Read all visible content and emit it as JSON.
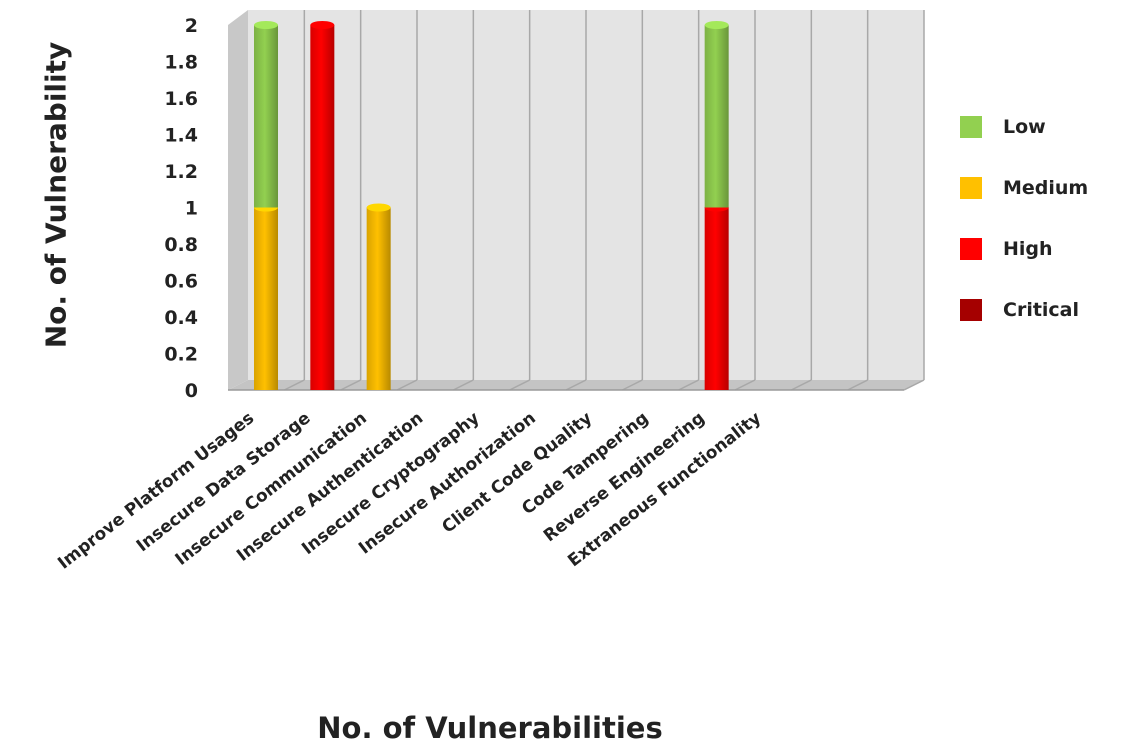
{
  "chart_data": {
    "type": "bar",
    "stacked": true,
    "three_d": true,
    "xlabel": "No. of Vulnerabilities",
    "ylabel": "No. of Vulnerability",
    "ylim": [
      0,
      2
    ],
    "yticks": [
      "0",
      "0.2",
      "0.4",
      "0.6",
      "0.8",
      "1",
      "1.2",
      "1.4",
      "1.6",
      "1.8",
      "2"
    ],
    "grid": "vertical",
    "legend_position": "right",
    "categories": [
      "Improve Platform Usages",
      "Insecure Data Storage",
      "Insecure Communication",
      "Insecure Authentication",
      "Insecure Cryptography",
      "Insecure Authorization",
      "Client Code Quality",
      "Code Tampering",
      "Reverse Engineering",
      "Extraneous Functionality"
    ],
    "series": [
      {
        "name": "Critical",
        "color": "#a50000",
        "values": [
          0,
          0,
          0,
          0,
          0,
          0,
          0,
          0,
          0,
          0
        ]
      },
      {
        "name": "High",
        "color": "#ff0000",
        "values": [
          0,
          2,
          0,
          0,
          0,
          0,
          0,
          0,
          1,
          0
        ]
      },
      {
        "name": "Medium",
        "color": "#ffc000",
        "values": [
          1,
          0,
          1,
          0,
          0,
          0,
          0,
          0,
          0,
          0
        ]
      },
      {
        "name": "Low",
        "color": "#92d050",
        "values": [
          1,
          0,
          0,
          0,
          0,
          0,
          0,
          0,
          1,
          0
        ]
      }
    ],
    "legend_order": [
      "Low",
      "Medium",
      "High",
      "Critical"
    ]
  }
}
